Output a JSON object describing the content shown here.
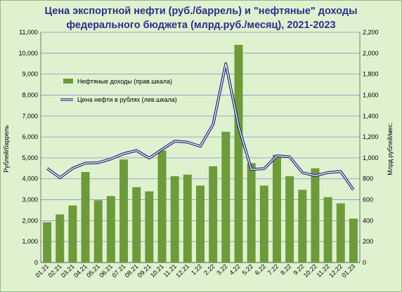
{
  "chart_data": {
    "type": "bar+line",
    "title_line1": "Цена экспортной нефти (руб./баррель) и \"нефтяные\" доходы",
    "title_line2": "федерального бюджета (млрд.руб./месяц), 2021-2023",
    "left_axis_label": "Рублей/баррель",
    "right_axis_label": "Млрд.рублей/мес.",
    "left_ylim": [
      0,
      11000
    ],
    "left_ticks": [
      "0",
      "1,000",
      "2,000",
      "3,000",
      "4,000",
      "5,000",
      "6,000",
      "7,000",
      "8,000",
      "9,000",
      "10,000",
      "11,000"
    ],
    "right_ylim": [
      0,
      2200
    ],
    "right_ticks": [
      "0",
      "200",
      "400",
      "600",
      "800",
      "1,000",
      "1,200",
      "1,400",
      "1,600",
      "1,800",
      "2,000",
      "2,200"
    ],
    "categories": [
      "01.21",
      "02.21",
      "03.21",
      "04.21",
      "05.21",
      "06.21",
      "07.21",
      "08.21",
      "09.21",
      "10.21",
      "11.21",
      "12.21",
      "1.22",
      "2.22",
      "3.22",
      "4.22",
      "5.22",
      "6.22",
      "7.22",
      "8.22",
      "9.22",
      "10.22",
      "11.22",
      "12.22",
      "01.23"
    ],
    "series": [
      {
        "name": "Нефтяные доходы (прав.шкала)",
        "type": "bar",
        "axis": "right",
        "color": "#6e9b3a",
        "values": [
          385,
          460,
          545,
          865,
          595,
          635,
          985,
          720,
          680,
          1070,
          825,
          840,
          735,
          920,
          1250,
          2080,
          950,
          735,
          1030,
          825,
          695,
          900,
          625,
          565,
          420
        ]
      },
      {
        "name": "Цена нефти в рублях (лев.шкала)",
        "type": "line",
        "axis": "left",
        "color": "#1f2a7a",
        "values": [
          4500,
          4050,
          4500,
          4750,
          4770,
          4950,
          5200,
          5350,
          4990,
          5400,
          5800,
          5750,
          5550,
          6600,
          9500,
          6500,
          4450,
          4480,
          5100,
          5050,
          4300,
          4150,
          4300,
          4350,
          3470
        ]
      }
    ],
    "grid": true,
    "legend": "top-left"
  }
}
